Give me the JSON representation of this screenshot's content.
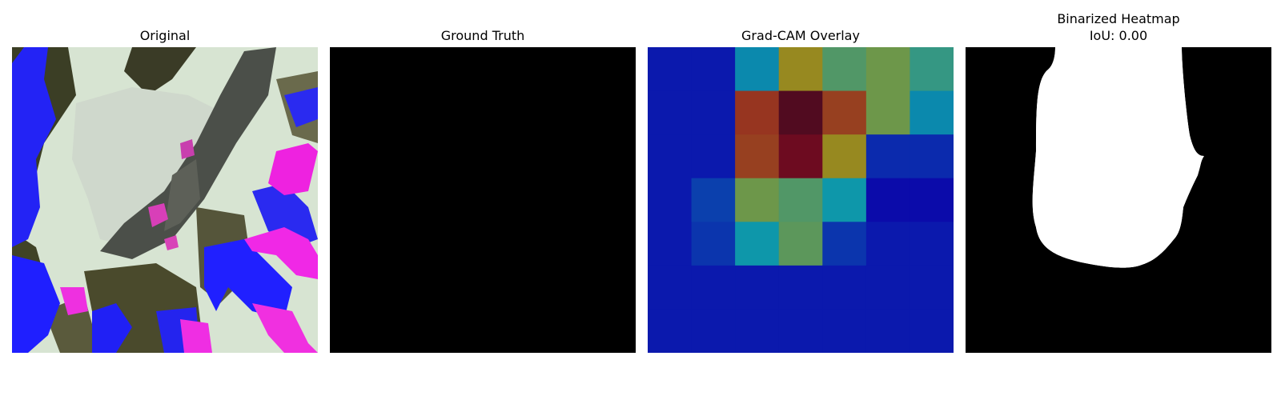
{
  "panels": [
    {
      "title": "Original"
    },
    {
      "title": "Ground Truth"
    },
    {
      "title": "Grad-CAM Overlay"
    },
    {
      "title": "Binarized Heatmap",
      "subtitle": "IoU: 0.00"
    }
  ],
  "gradcam": {
    "grid": [
      [
        0.15,
        0.15,
        0.35,
        0.65,
        0.5,
        0.55,
        0.45
      ],
      [
        0.15,
        0.15,
        0.8,
        1.0,
        0.78,
        0.55,
        0.35
      ],
      [
        0.15,
        0.15,
        0.78,
        0.95,
        0.65,
        0.18,
        0.18
      ],
      [
        0.15,
        0.22,
        0.55,
        0.5,
        0.38,
        0.12,
        0.12
      ],
      [
        0.15,
        0.2,
        0.38,
        0.52,
        0.2,
        0.15,
        0.15
      ],
      [
        0.15,
        0.15,
        0.15,
        0.15,
        0.15,
        0.15,
        0.15
      ],
      [
        0.15,
        0.15,
        0.15,
        0.15,
        0.15,
        0.15,
        0.15
      ]
    ]
  },
  "colors": {
    "background": "#000000",
    "binary_fg": "#ffffff"
  }
}
